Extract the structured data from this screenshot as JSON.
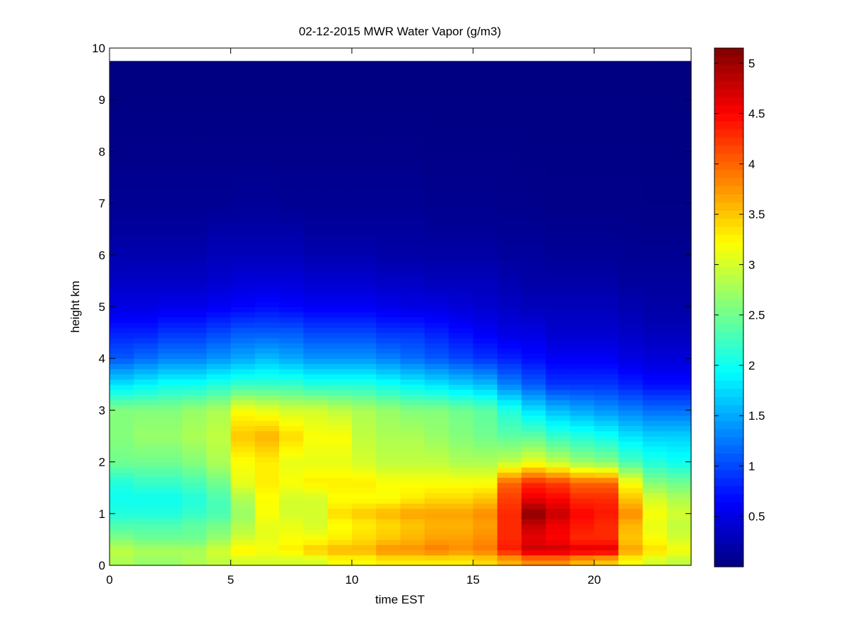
{
  "chart_data": {
    "type": "heatmap",
    "title": "02-12-2015 MWR Water Vapor (g/m3)",
    "xlabel": "time EST",
    "ylabel": "height km",
    "xlim": [
      0,
      24
    ],
    "ylim": [
      0,
      10
    ],
    "xticks": [
      0,
      5,
      10,
      15,
      20
    ],
    "yticks": [
      0,
      1,
      2,
      3,
      4,
      5,
      6,
      7,
      8,
      9,
      10
    ],
    "colorbar": {
      "colormap": "jet",
      "clim": [
        0,
        5.15
      ],
      "ticks": [
        0.5,
        1,
        1.5,
        2,
        2.5,
        3,
        3.5,
        4,
        4.5,
        5
      ]
    },
    "x_centers": [
      0.5,
      1.5,
      2.5,
      3.5,
      4.5,
      5.5,
      6.5,
      7.5,
      8.5,
      9.5,
      10.5,
      11.5,
      12.5,
      13.5,
      14.5,
      15.5,
      16.5,
      17.5,
      18.5,
      19.5,
      20.5,
      21.5,
      22.5,
      23.5
    ],
    "height_profile_km": [
      0.1,
      0.3,
      0.5,
      0.8,
      1.0,
      1.3,
      1.6,
      2.0,
      2.5,
      3.0,
      3.5,
      4.0,
      4.5,
      5.0,
      5.5,
      6.0,
      6.5,
      7.0,
      8.0,
      9.0,
      9.75
    ],
    "water_vapor_profiles": [
      [
        2.8,
        2.9,
        2.6,
        2.3,
        2.1,
        2.0,
        2.1,
        2.5,
        2.6,
        2.6,
        1.8,
        1.1,
        0.8,
        0.5,
        0.35,
        0.25,
        0.15,
        0.1,
        0.05,
        0.02,
        0.01
      ],
      [
        2.7,
        2.8,
        2.5,
        2.3,
        2.1,
        2.0,
        2.2,
        2.5,
        2.7,
        2.6,
        1.9,
        1.2,
        0.8,
        0.5,
        0.35,
        0.25,
        0.15,
        0.1,
        0.05,
        0.02,
        0.01
      ],
      [
        2.7,
        2.8,
        2.5,
        2.3,
        2.1,
        2.0,
        2.2,
        2.5,
        2.7,
        2.6,
        2.0,
        1.3,
        0.9,
        0.55,
        0.35,
        0.25,
        0.15,
        0.1,
        0.05,
        0.02,
        0.01
      ],
      [
        2.8,
        2.8,
        2.5,
        2.4,
        2.2,
        2.1,
        2.3,
        2.6,
        2.8,
        2.7,
        2.0,
        1.3,
        0.9,
        0.55,
        0.35,
        0.25,
        0.15,
        0.1,
        0.05,
        0.02,
        0.01
      ],
      [
        2.9,
        3.0,
        2.7,
        2.5,
        2.3,
        2.3,
        2.5,
        2.8,
        2.9,
        2.8,
        2.1,
        1.4,
        1.0,
        0.6,
        0.4,
        0.3,
        0.2,
        0.1,
        0.05,
        0.02,
        0.01
      ],
      [
        3.0,
        3.3,
        3.0,
        2.8,
        2.7,
        2.8,
        3.1,
        3.2,
        3.5,
        3.2,
        2.2,
        1.5,
        1.1,
        0.65,
        0.45,
        0.3,
        0.2,
        0.12,
        0.05,
        0.02,
        0.01
      ],
      [
        3.0,
        3.2,
        3.1,
        3.1,
        3.2,
        3.2,
        3.3,
        3.3,
        3.6,
        3.1,
        2.2,
        1.6,
        1.1,
        0.7,
        0.45,
        0.3,
        0.2,
        0.12,
        0.05,
        0.02,
        0.01
      ],
      [
        3.0,
        3.3,
        3.2,
        3.1,
        3.0,
        3.0,
        3.2,
        3.1,
        3.4,
        3.0,
        2.2,
        1.5,
        1.1,
        0.65,
        0.45,
        0.3,
        0.2,
        0.1,
        0.05,
        0.02,
        0.01
      ],
      [
        3.0,
        3.5,
        3.2,
        3.0,
        3.0,
        3.0,
        3.3,
        3.1,
        3.2,
        3.0,
        2.1,
        1.4,
        1.0,
        0.6,
        0.4,
        0.25,
        0.15,
        0.1,
        0.05,
        0.02,
        0.01
      ],
      [
        3.2,
        3.6,
        3.3,
        3.2,
        3.4,
        3.2,
        3.3,
        3.1,
        3.2,
        2.9,
        2.1,
        1.4,
        1.0,
        0.6,
        0.4,
        0.25,
        0.15,
        0.1,
        0.05,
        0.02,
        0.01
      ],
      [
        3.2,
        3.6,
        3.4,
        3.3,
        3.5,
        3.2,
        3.3,
        3.0,
        2.9,
        2.8,
        2.1,
        1.4,
        1.0,
        0.6,
        0.4,
        0.25,
        0.15,
        0.1,
        0.05,
        0.02,
        0.01
      ],
      [
        3.3,
        3.8,
        3.5,
        3.4,
        3.6,
        3.2,
        3.2,
        2.9,
        2.8,
        2.7,
        2.0,
        1.3,
        0.9,
        0.55,
        0.35,
        0.2,
        0.15,
        0.1,
        0.05,
        0.02,
        0.01
      ],
      [
        3.3,
        3.8,
        3.6,
        3.5,
        3.7,
        3.3,
        3.2,
        2.9,
        2.8,
        2.6,
        1.9,
        1.2,
        0.9,
        0.5,
        0.35,
        0.2,
        0.15,
        0.1,
        0.05,
        0.02,
        0.01
      ],
      [
        3.3,
        3.9,
        3.7,
        3.6,
        3.7,
        3.4,
        3.2,
        2.9,
        2.7,
        2.6,
        1.8,
        1.1,
        0.8,
        0.5,
        0.3,
        0.2,
        0.12,
        0.08,
        0.04,
        0.02,
        0.01
      ],
      [
        3.3,
        3.8,
        3.7,
        3.6,
        3.7,
        3.4,
        3.2,
        2.8,
        2.6,
        2.5,
        1.7,
        1.0,
        0.7,
        0.45,
        0.3,
        0.2,
        0.12,
        0.08,
        0.04,
        0.02,
        0.01
      ],
      [
        3.4,
        3.9,
        3.8,
        3.7,
        3.8,
        3.5,
        3.2,
        2.8,
        2.5,
        2.4,
        1.6,
        0.9,
        0.6,
        0.4,
        0.3,
        0.2,
        0.12,
        0.08,
        0.04,
        0.02,
        0.01
      ],
      [
        3.6,
        4.4,
        4.3,
        4.3,
        4.3,
        4.2,
        4.0,
        2.9,
        2.4,
        2.1,
        1.3,
        0.8,
        0.5,
        0.35,
        0.25,
        0.15,
        0.1,
        0.07,
        0.04,
        0.02,
        0.01
      ],
      [
        3.8,
        4.8,
        4.6,
        4.8,
        5.1,
        4.6,
        4.3,
        3.1,
        2.4,
        1.8,
        1.1,
        0.7,
        0.5,
        0.3,
        0.2,
        0.15,
        0.1,
        0.06,
        0.03,
        0.02,
        0.01
      ],
      [
        3.8,
        4.8,
        4.5,
        4.6,
        4.8,
        4.5,
        4.2,
        2.9,
        2.2,
        1.6,
        0.9,
        0.6,
        0.4,
        0.3,
        0.2,
        0.12,
        0.08,
        0.05,
        0.03,
        0.02,
        0.01
      ],
      [
        3.6,
        4.7,
        4.3,
        4.4,
        4.5,
        4.3,
        4.0,
        2.7,
        2.1,
        1.5,
        0.9,
        0.6,
        0.4,
        0.3,
        0.2,
        0.12,
        0.08,
        0.05,
        0.03,
        0.02,
        0.01
      ],
      [
        3.5,
        4.7,
        4.3,
        4.3,
        4.4,
        4.3,
        4.0,
        2.6,
        2.0,
        1.4,
        0.9,
        0.6,
        0.4,
        0.3,
        0.2,
        0.12,
        0.08,
        0.05,
        0.03,
        0.02,
        0.01
      ],
      [
        3.2,
        3.7,
        3.5,
        3.6,
        3.8,
        3.5,
        3.2,
        2.3,
        1.8,
        1.3,
        0.8,
        0.5,
        0.35,
        0.25,
        0.15,
        0.1,
        0.07,
        0.05,
        0.03,
        0.02,
        0.01
      ],
      [
        3.0,
        3.4,
        3.2,
        3.1,
        3.2,
        3.0,
        2.6,
        2.1,
        1.7,
        1.2,
        0.7,
        0.45,
        0.3,
        0.2,
        0.15,
        0.1,
        0.06,
        0.04,
        0.02,
        0.01,
        0.01
      ],
      [
        2.9,
        3.2,
        3.0,
        2.9,
        3.0,
        2.8,
        2.5,
        2.0,
        1.7,
        1.2,
        0.7,
        0.45,
        0.3,
        0.2,
        0.15,
        0.1,
        0.06,
        0.04,
        0.02,
        0.01,
        0.01
      ]
    ]
  }
}
